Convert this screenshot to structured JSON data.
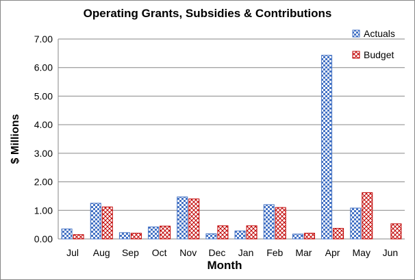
{
  "chart_data": {
    "type": "bar",
    "title": "Operating Grants, Subsidies & Contributions",
    "xlabel": "Month",
    "ylabel": "$ Millions",
    "categories": [
      "Jul",
      "Aug",
      "Sep",
      "Oct",
      "Nov",
      "Dec",
      "Jan",
      "Feb",
      "Mar",
      "Apr",
      "May",
      "Jun"
    ],
    "series": [
      {
        "name": "Actuals",
        "values": [
          0.35,
          1.25,
          0.22,
          0.42,
          1.47,
          0.18,
          0.28,
          1.2,
          0.17,
          6.43,
          1.08,
          null
        ],
        "color": "#4472c4",
        "pattern": "checker"
      },
      {
        "name": "Budget",
        "values": [
          0.15,
          1.12,
          0.2,
          0.45,
          1.4,
          0.46,
          0.46,
          1.1,
          0.2,
          0.37,
          1.62,
          0.53
        ],
        "color": "#c00000",
        "pattern": "diagonal-cross"
      }
    ],
    "ylim": [
      0,
      7
    ],
    "yticks": [
      "0.00",
      "1.00",
      "2.00",
      "3.00",
      "4.00",
      "5.00",
      "6.00",
      "7.00"
    ],
    "grid": true,
    "legend_position": "top-right"
  }
}
